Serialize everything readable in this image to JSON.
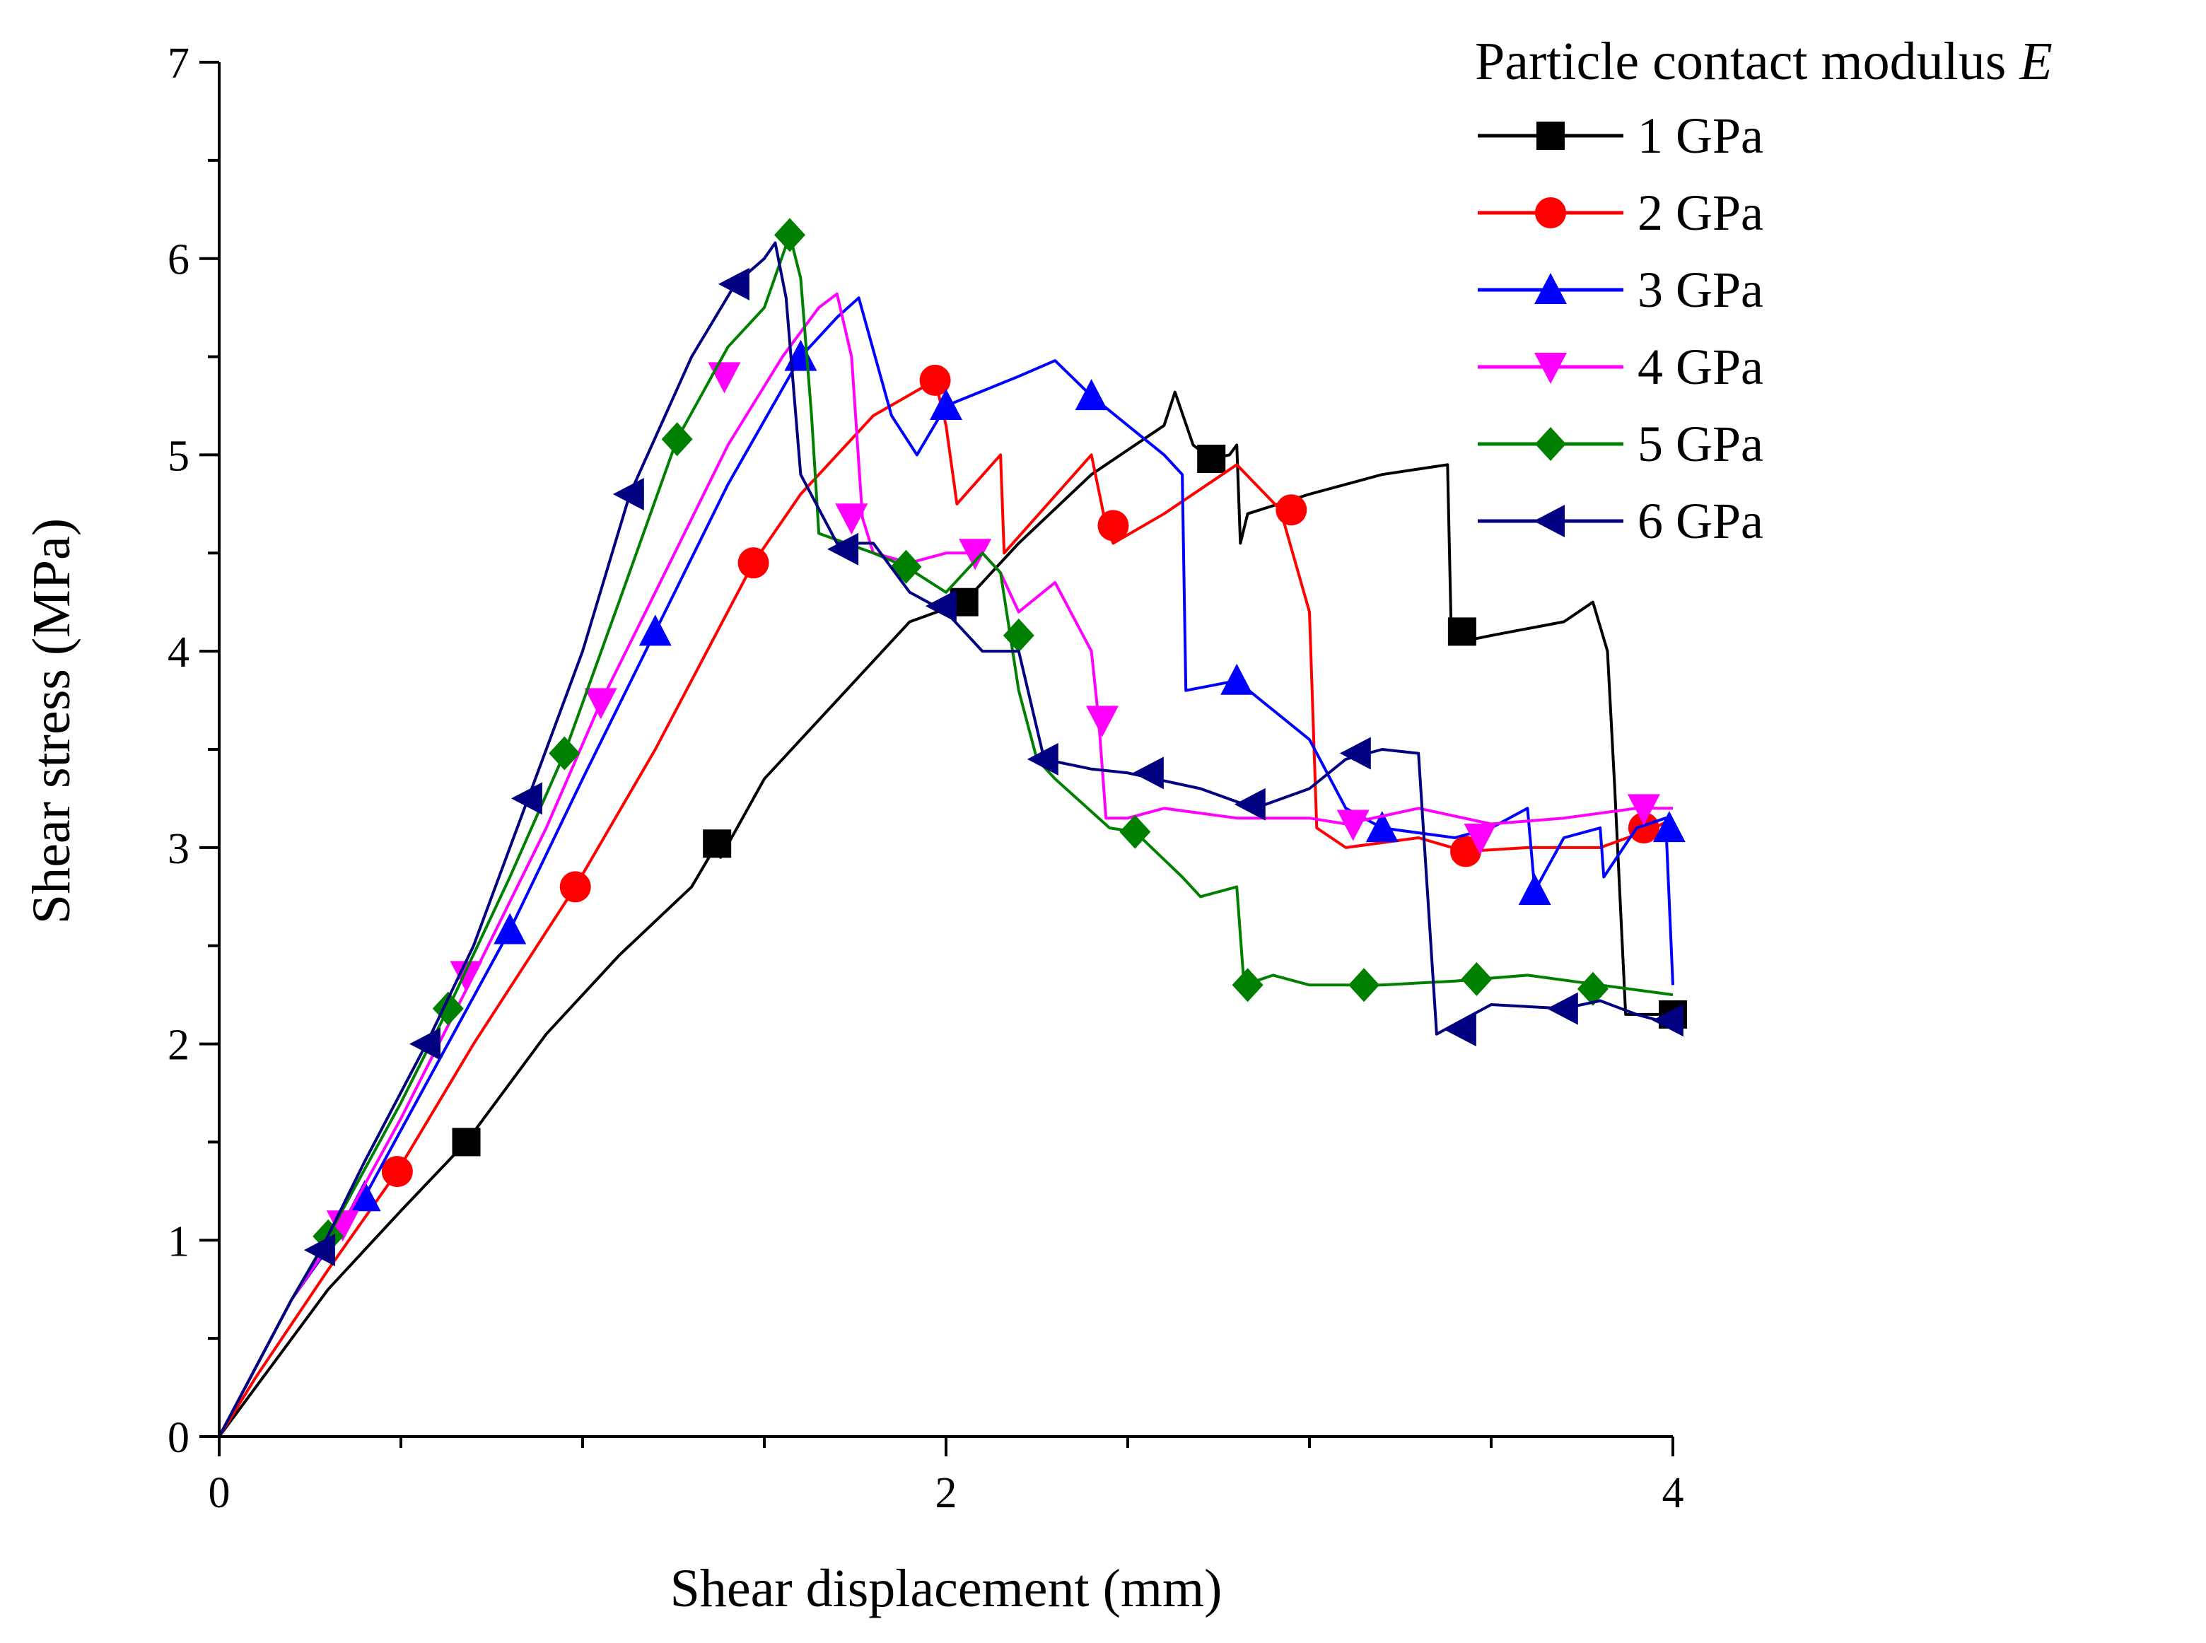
{
  "chart_data": {
    "type": "line",
    "title": "",
    "xlabel": "Shear displacement (mm)",
    "ylabel": "Shear stress (MPa)",
    "xlim": [
      0,
      4
    ],
    "ylim": [
      0,
      7
    ],
    "xticks": [
      0,
      2,
      4
    ],
    "yticks": [
      0,
      1,
      2,
      3,
      4,
      5,
      6,
      7
    ],
    "legend": {
      "title_prefix": "Particle contact modulus ",
      "title_var": "E",
      "placement": "top-right"
    },
    "series": [
      {
        "name": "1 GPa",
        "color": "#000000",
        "marker": "square",
        "x": [
          0,
          0.1,
          0.3,
          0.5,
          0.68,
          0.9,
          1.1,
          1.3,
          1.37,
          1.38,
          1.5,
          1.7,
          1.9,
          2.05,
          2.2,
          2.4,
          2.6,
          2.63,
          2.68,
          2.73,
          2.78,
          2.8,
          2.81,
          2.83,
          3.0,
          3.2,
          3.38,
          3.39,
          3.42,
          3.5,
          3.7,
          3.78,
          3.82,
          3.84,
          3.87,
          3.95,
          4.0
        ],
        "y": [
          0,
          0.25,
          0.75,
          1.15,
          1.5,
          2.05,
          2.45,
          2.8,
          3.02,
          2.95,
          3.35,
          3.75,
          4.15,
          4.25,
          4.55,
          4.9,
          5.15,
          5.32,
          5.05,
          4.98,
          5.0,
          5.05,
          4.55,
          4.7,
          4.8,
          4.9,
          4.95,
          4.1,
          4.05,
          4.08,
          4.15,
          4.25,
          4.0,
          3.3,
          2.15,
          2.15,
          2.15
        ],
        "marker_x": [
          0.68,
          1.37,
          2.05,
          2.73,
          3.42,
          4.0
        ],
        "marker_y": [
          1.5,
          3.02,
          4.25,
          4.98,
          4.1,
          2.15
        ]
      },
      {
        "name": "2 GPa",
        "color": "#ff0000",
        "marker": "circle",
        "x": [
          0,
          0.1,
          0.3,
          0.49,
          0.7,
          0.98,
          1.2,
          1.47,
          1.6,
          1.8,
          1.97,
          2.0,
          2.03,
          2.15,
          2.16,
          2.4,
          2.44,
          2.46,
          2.6,
          2.8,
          2.92,
          3.0,
          3.02,
          3.1,
          3.3,
          3.43,
          3.6,
          3.8,
          3.95,
          4.0
        ],
        "y": [
          0,
          0.3,
          0.85,
          1.35,
          2.0,
          2.8,
          3.5,
          4.45,
          4.8,
          5.2,
          5.38,
          5.15,
          4.75,
          5.0,
          4.5,
          5.0,
          4.64,
          4.55,
          4.7,
          4.95,
          4.72,
          4.2,
          3.1,
          3.0,
          3.05,
          2.98,
          3.0,
          3.0,
          3.1,
          3.15
        ],
        "marker_x": [
          0.49,
          0.98,
          1.47,
          1.97,
          2.46,
          2.95,
          3.43,
          3.92
        ],
        "marker_y": [
          1.35,
          2.8,
          4.45,
          5.38,
          4.64,
          4.72,
          2.98,
          3.1
        ]
      },
      {
        "name": "3 GPa",
        "color": "#0000ff",
        "marker": "triangle-up",
        "x": [
          0,
          0.1,
          0.2,
          0.4,
          0.6,
          0.8,
          1.0,
          1.2,
          1.4,
          1.6,
          1.7,
          1.76,
          1.85,
          1.92,
          2.0,
          2.2,
          2.3,
          2.4,
          2.5,
          2.6,
          2.65,
          2.66,
          2.8,
          3.0,
          3.1,
          3.2,
          3.4,
          3.5,
          3.6,
          3.62,
          3.7,
          3.8,
          3.81,
          3.9,
          3.98,
          4.0
        ],
        "y": [
          0,
          0.35,
          0.7,
          1.22,
          1.9,
          2.58,
          3.35,
          4.1,
          4.85,
          5.5,
          5.7,
          5.8,
          5.2,
          5.0,
          5.25,
          5.4,
          5.48,
          5.3,
          5.15,
          5.0,
          4.9,
          3.8,
          3.85,
          3.55,
          3.2,
          3.1,
          3.05,
          3.1,
          3.2,
          2.78,
          3.05,
          3.1,
          2.85,
          3.1,
          3.15,
          2.3
        ],
        "marker_x": [
          0.4,
          0.8,
          1.2,
          1.6,
          2.0,
          2.4,
          2.8,
          3.2,
          3.62,
          3.99
        ],
        "marker_y": [
          1.22,
          2.58,
          4.1,
          5.5,
          5.25,
          5.3,
          3.85,
          3.1,
          2.78,
          3.1
        ]
      },
      {
        "name": "4 GPa",
        "color": "#ff00ff",
        "marker": "triangle-down",
        "x": [
          0,
          0.1,
          0.2,
          0.34,
          0.5,
          0.7,
          0.9,
          1.05,
          1.2,
          1.4,
          1.55,
          1.65,
          1.7,
          1.74,
          1.77,
          1.8,
          1.9,
          2.0,
          2.1,
          2.15,
          2.2,
          2.3,
          2.4,
          2.42,
          2.44,
          2.5,
          2.6,
          2.8,
          3.0,
          3.1,
          3.3,
          3.5,
          3.7,
          3.9,
          4.0
        ],
        "y": [
          0,
          0.35,
          0.7,
          1.08,
          1.62,
          2.35,
          3.1,
          3.74,
          4.3,
          5.05,
          5.5,
          5.75,
          5.82,
          5.5,
          4.68,
          4.5,
          4.45,
          4.5,
          4.5,
          4.4,
          4.2,
          4.35,
          4.0,
          3.65,
          3.15,
          3.15,
          3.2,
          3.15,
          3.15,
          3.12,
          3.2,
          3.12,
          3.15,
          3.2,
          3.2
        ],
        "marker_x": [
          0.34,
          0.68,
          1.05,
          1.39,
          1.74,
          2.08,
          2.43,
          3.12,
          3.47,
          3.92
        ],
        "marker_y": [
          1.08,
          2.35,
          3.74,
          5.4,
          4.68,
          4.5,
          3.65,
          3.12,
          3.05,
          3.2
        ]
      },
      {
        "name": "5 GPa",
        "color": "#008000",
        "marker": "diamond",
        "x": [
          0,
          0.1,
          0.2,
          0.3,
          0.5,
          0.63,
          0.8,
          0.95,
          1.1,
          1.26,
          1.4,
          1.5,
          1.57,
          1.6,
          1.63,
          1.65,
          1.8,
          1.89,
          2.0,
          2.1,
          2.15,
          2.2,
          2.25,
          2.3,
          2.45,
          2.52,
          2.65,
          2.7,
          2.8,
          2.82,
          2.9,
          3.0,
          3.2,
          3.4,
          3.6,
          3.8,
          4.0
        ],
        "y": [
          0,
          0.35,
          0.7,
          1.02,
          1.7,
          2.18,
          2.85,
          3.48,
          4.25,
          5.08,
          5.55,
          5.75,
          6.12,
          5.9,
          5.2,
          4.6,
          4.5,
          4.43,
          4.3,
          4.5,
          4.4,
          3.8,
          3.45,
          3.35,
          3.1,
          3.08,
          2.85,
          2.75,
          2.8,
          2.3,
          2.35,
          2.3,
          2.3,
          2.32,
          2.35,
          2.3,
          2.25
        ],
        "marker_x": [
          0.3,
          0.63,
          0.95,
          1.26,
          1.57,
          1.89,
          2.2,
          2.52,
          2.83,
          3.15,
          3.46,
          3.78
        ],
        "marker_y": [
          1.02,
          2.18,
          3.48,
          5.08,
          6.12,
          4.43,
          4.08,
          3.08,
          2.3,
          2.3,
          2.33,
          2.28
        ]
      },
      {
        "name": "6 GPa",
        "color": "#000080",
        "marker": "triangle-left",
        "x": [
          0,
          0.1,
          0.2,
          0.28,
          0.4,
          0.57,
          0.7,
          0.85,
          1.0,
          1.13,
          1.3,
          1.42,
          1.5,
          1.53,
          1.56,
          1.6,
          1.7,
          1.8,
          1.9,
          2.0,
          2.1,
          2.2,
          2.27,
          2.4,
          2.5,
          2.7,
          2.85,
          3.0,
          3.1,
          3.2,
          3.3,
          3.35,
          3.4,
          3.5,
          3.7,
          3.8,
          3.9,
          4.0
        ],
        "y": [
          0,
          0.35,
          0.7,
          0.95,
          1.4,
          2.0,
          2.5,
          3.25,
          4.0,
          4.8,
          5.5,
          5.87,
          6.0,
          6.08,
          5.8,
          4.9,
          4.55,
          4.55,
          4.3,
          4.2,
          4.0,
          4.0,
          3.45,
          3.4,
          3.38,
          3.3,
          3.2,
          3.3,
          3.45,
          3.5,
          3.48,
          2.05,
          2.1,
          2.2,
          2.18,
          2.22,
          2.15,
          2.1
        ],
        "marker_x": [
          0.28,
          0.57,
          0.85,
          1.13,
          1.42,
          1.72,
          1.99,
          2.27,
          2.56,
          2.84,
          3.13,
          3.42,
          3.7,
          3.99
        ],
        "marker_y": [
          0.95,
          2.0,
          3.25,
          4.8,
          5.87,
          4.52,
          4.23,
          3.45,
          3.38,
          3.22,
          3.48,
          2.07,
          2.18,
          2.12
        ]
      }
    ]
  }
}
